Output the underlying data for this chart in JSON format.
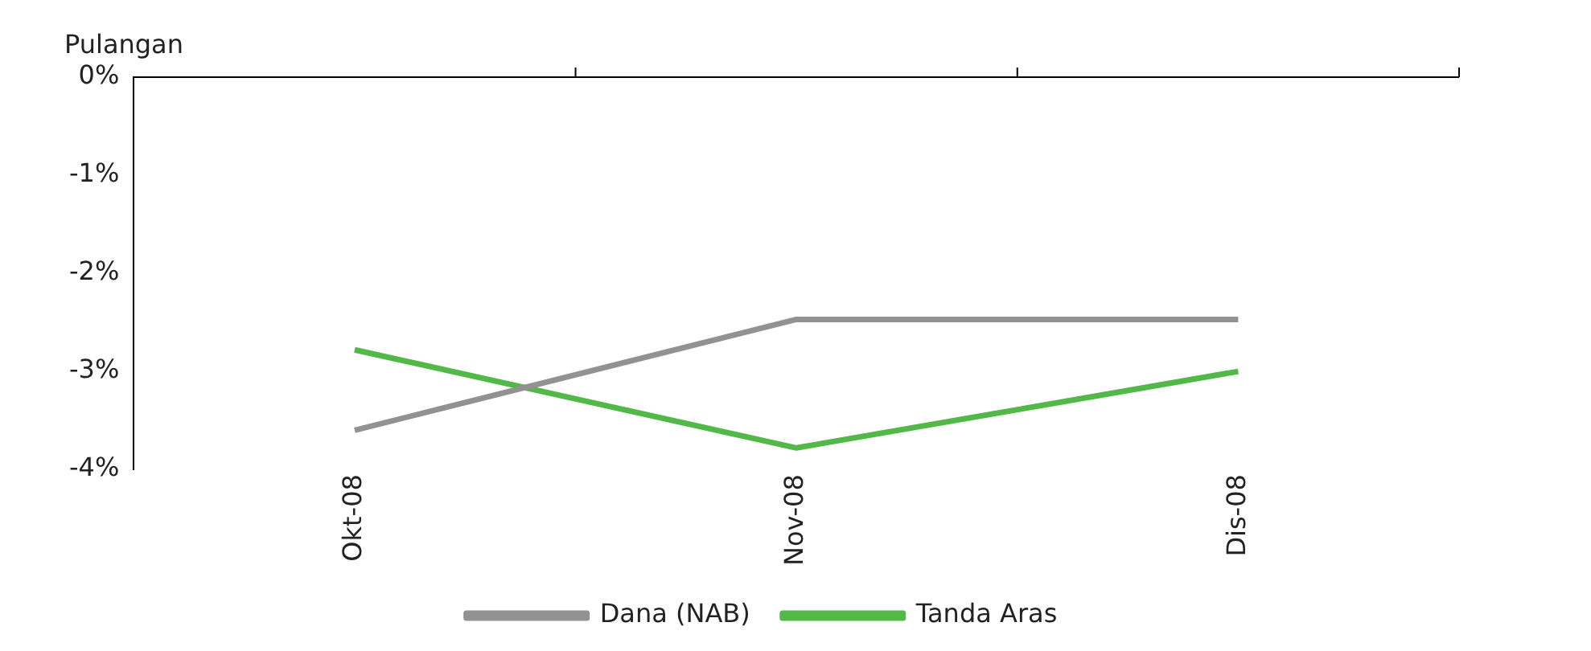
{
  "chart_data": {
    "type": "line",
    "ylabel": "Pulangan",
    "categories": [
      "Okt-08",
      "Nov-08",
      "Dis-08"
    ],
    "series": [
      {
        "name": "Dana (NAB)",
        "color": "#929292",
        "values": [
          -3.6,
          -2.47,
          -2.47
        ]
      },
      {
        "name": "Tanda Aras",
        "color": "#52b848",
        "values": [
          -2.78,
          -3.78,
          -3.0
        ]
      }
    ],
    "ylim": [
      -4,
      0
    ],
    "yticks": [
      {
        "value": 0,
        "label": "0%"
      },
      {
        "value": -1,
        "label": "-1%"
      },
      {
        "value": -2,
        "label": "-2%"
      },
      {
        "value": -3,
        "label": "-3%"
      },
      {
        "value": -4,
        "label": "-4%"
      }
    ],
    "grid": false,
    "legend": "bottom",
    "marker": "none",
    "line_style": "solid"
  }
}
